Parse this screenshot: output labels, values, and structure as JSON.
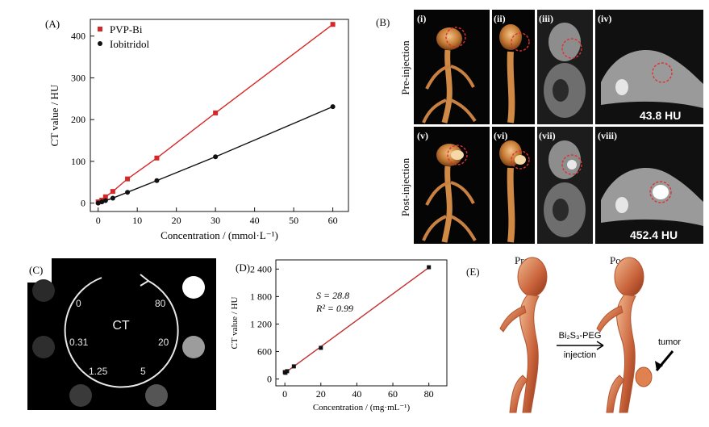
{
  "panels": {
    "A": {
      "label": "(A)",
      "chart_data": {
        "type": "line",
        "xlabel": "Concentration / (mmol·L⁻¹)",
        "ylabel": "CT value / HU",
        "xlim": [
          -2,
          64
        ],
        "ylim": [
          -20,
          440
        ],
        "xticks": [
          0,
          10,
          20,
          30,
          40,
          50,
          60
        ],
        "yticks": [
          0,
          100,
          200,
          300,
          400
        ],
        "legend_position": "top-left",
        "series": [
          {
            "name": "PVP-Bi",
            "color": "#d62728",
            "marker": "square",
            "x": [
              0,
              0.94,
              1.88,
              3.75,
              7.5,
              15,
              30,
              60
            ],
            "y": [
              3,
              7,
              15,
              28,
              58,
              108,
              216,
              428
            ]
          },
          {
            "name": "Iobitridol",
            "color": "#111111",
            "marker": "circle",
            "x": [
              0,
              0.94,
              1.88,
              3.75,
              7.5,
              15,
              30,
              60
            ],
            "y": [
              0,
              3,
              6,
              12,
              26,
              54,
              111,
              231
            ]
          }
        ]
      }
    },
    "B": {
      "label": "(B)",
      "row_labels": [
        "Pre-injection",
        "Post-injection"
      ],
      "sub_labels": [
        "(i)",
        "(ii)",
        "(iii)",
        "(iv)",
        "(v)",
        "(vi)",
        "(vii)",
        "(viii)"
      ],
      "hu_values": [
        "43.8 HU",
        "452.4 HU"
      ]
    },
    "C": {
      "label": "(C)",
      "center_text": "CT",
      "concentrations": [
        "0",
        "80",
        "0.31",
        "20",
        "1.25",
        "5"
      ]
    },
    "D": {
      "label": "(D)",
      "chart_data": {
        "type": "scatter",
        "xlabel": "Concentration / (mg·mL⁻¹)",
        "ylabel": "CT value / HU",
        "xlim": [
          -5,
          90
        ],
        "ylim": [
          -150,
          2600
        ],
        "xticks": [
          0,
          20,
          40,
          60,
          80
        ],
        "yticks": [
          0,
          600,
          1200,
          1800,
          2400
        ],
        "ytick_labels": [
          "0",
          "600",
          "1 200",
          "1 800",
          "2 400"
        ],
        "annotations": [
          "S = 28.8",
          "R² = 0.99"
        ],
        "fit_line": {
          "color": "#c03030",
          "slope": 28.8,
          "intercept": 130
        },
        "series": [
          {
            "marker": "square",
            "color": "#111111",
            "x": [
              0,
              0.31,
              1.25,
              5,
              20,
              80
            ],
            "y": [
              150,
              135,
              170,
              275,
              680,
              2440
            ]
          }
        ]
      }
    },
    "E": {
      "label": "(E)",
      "pre_label": "Pre",
      "post_label": "Post",
      "agent_label": "Bi₂S₃-PEG",
      "injection_label": "injection",
      "tumor_label": "tumor"
    }
  }
}
